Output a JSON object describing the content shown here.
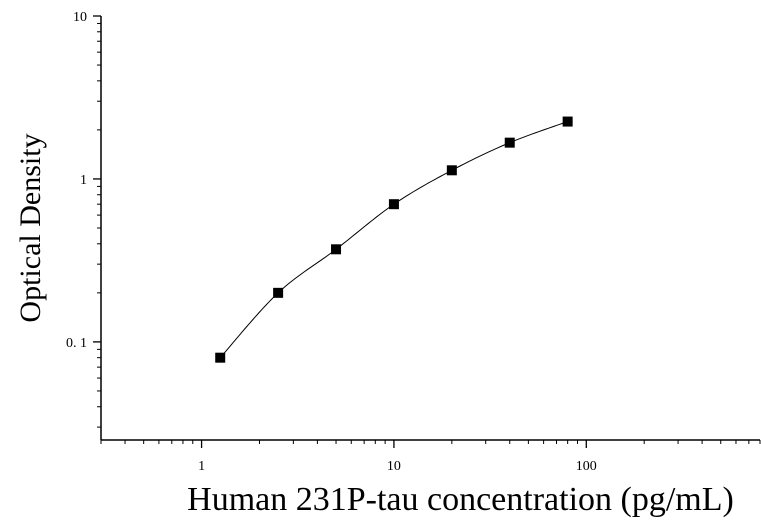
{
  "chart_data": {
    "type": "scatter",
    "title": "",
    "xlabel": "Human 231P-tau concentration (pg/mL)",
    "ylabel": "Optical Density",
    "xscale": "log",
    "yscale": "log",
    "xlim": [
      0.3,
      800
    ],
    "ylim": [
      0.025,
      10
    ],
    "x_ticks": [
      {
        "value": 1,
        "label": "1"
      },
      {
        "value": 10,
        "label": "10"
      },
      {
        "value": 100,
        "label": "100"
      }
    ],
    "y_ticks": [
      {
        "value": 0.1,
        "label": "0. 1"
      },
      {
        "value": 1,
        "label": "1"
      },
      {
        "value": 10,
        "label": "10"
      }
    ],
    "grid": false,
    "legend": "none",
    "marker_color": "#000000",
    "curve_color": "#000000",
    "series": [
      {
        "x": [
          1.25,
          2.5,
          5,
          10,
          20,
          40,
          80
        ],
        "y": [
          0.08,
          0.2,
          0.37,
          0.7,
          1.13,
          1.67,
          2.25
        ]
      }
    ],
    "fit_curve": true
  }
}
